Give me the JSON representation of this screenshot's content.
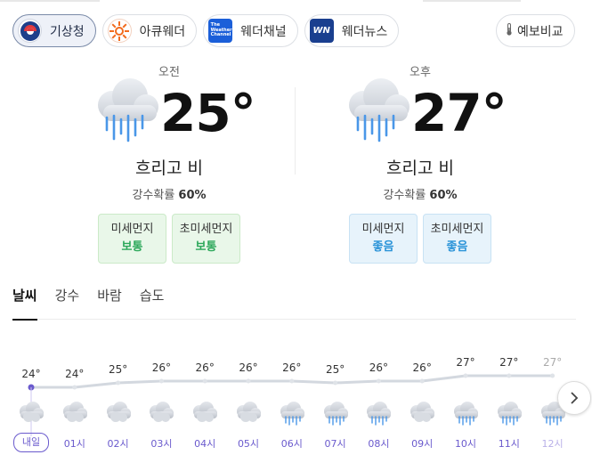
{
  "sources": [
    {
      "label": "기상청",
      "active": true,
      "icon": "kma-logo-icon"
    },
    {
      "label": "아큐웨더",
      "active": false,
      "icon": "accuweather-logo-icon"
    },
    {
      "label": "웨더채널",
      "active": false,
      "icon": "weather-channel-logo-icon"
    },
    {
      "label": "웨더뉴스",
      "active": false,
      "icon": "weathernews-logo-icon"
    }
  ],
  "weather_channel_logo_text": "The Weather Channel",
  "weathernews_logo_text": "WN",
  "compare": {
    "label": "예보비교",
    "icon": "thermometer-icon"
  },
  "morning": {
    "label": "오전",
    "temp": "25°",
    "condition": "흐리고 비",
    "rain_label": "강수확률",
    "rain_value": "60%",
    "dust": [
      {
        "name": "미세먼지",
        "value": "보통",
        "level": "green"
      },
      {
        "name": "초미세먼지",
        "value": "보통",
        "level": "green"
      }
    ]
  },
  "afternoon": {
    "label": "오후",
    "temp": "27°",
    "condition": "흐리고 비",
    "rain_label": "강수확률",
    "rain_value": "60%",
    "dust": [
      {
        "name": "미세먼지",
        "value": "좋음",
        "level": "blue"
      },
      {
        "name": "초미세먼지",
        "value": "좋음",
        "level": "blue"
      }
    ]
  },
  "tabs": [
    "날씨",
    "강수",
    "바람",
    "습도"
  ],
  "active_tab": "날씨",
  "hourly": [
    {
      "time": "내일",
      "temp": "24°",
      "icon": "cloudy",
      "now": true
    },
    {
      "time": "01시",
      "temp": "24°",
      "icon": "cloudy"
    },
    {
      "time": "02시",
      "temp": "25°",
      "icon": "cloudy"
    },
    {
      "time": "03시",
      "temp": "26°",
      "icon": "cloudy"
    },
    {
      "time": "04시",
      "temp": "26°",
      "icon": "cloudy"
    },
    {
      "time": "05시",
      "temp": "26°",
      "icon": "cloudy"
    },
    {
      "time": "06시",
      "temp": "26°",
      "icon": "rain"
    },
    {
      "time": "07시",
      "temp": "25°",
      "icon": "rain"
    },
    {
      "time": "08시",
      "temp": "26°",
      "icon": "rain"
    },
    {
      "time": "09시",
      "temp": "26°",
      "icon": "cloudy"
    },
    {
      "time": "10시",
      "temp": "27°",
      "icon": "rain"
    },
    {
      "time": "11시",
      "temp": "27°",
      "icon": "rain"
    },
    {
      "time": "12시",
      "temp": "27°",
      "icon": "rain"
    }
  ],
  "colors": {
    "accent": "#6a5acd",
    "dust_green": "#2ca85a",
    "dust_blue": "#2a93d8",
    "temp_line": "#d3d8df"
  }
}
